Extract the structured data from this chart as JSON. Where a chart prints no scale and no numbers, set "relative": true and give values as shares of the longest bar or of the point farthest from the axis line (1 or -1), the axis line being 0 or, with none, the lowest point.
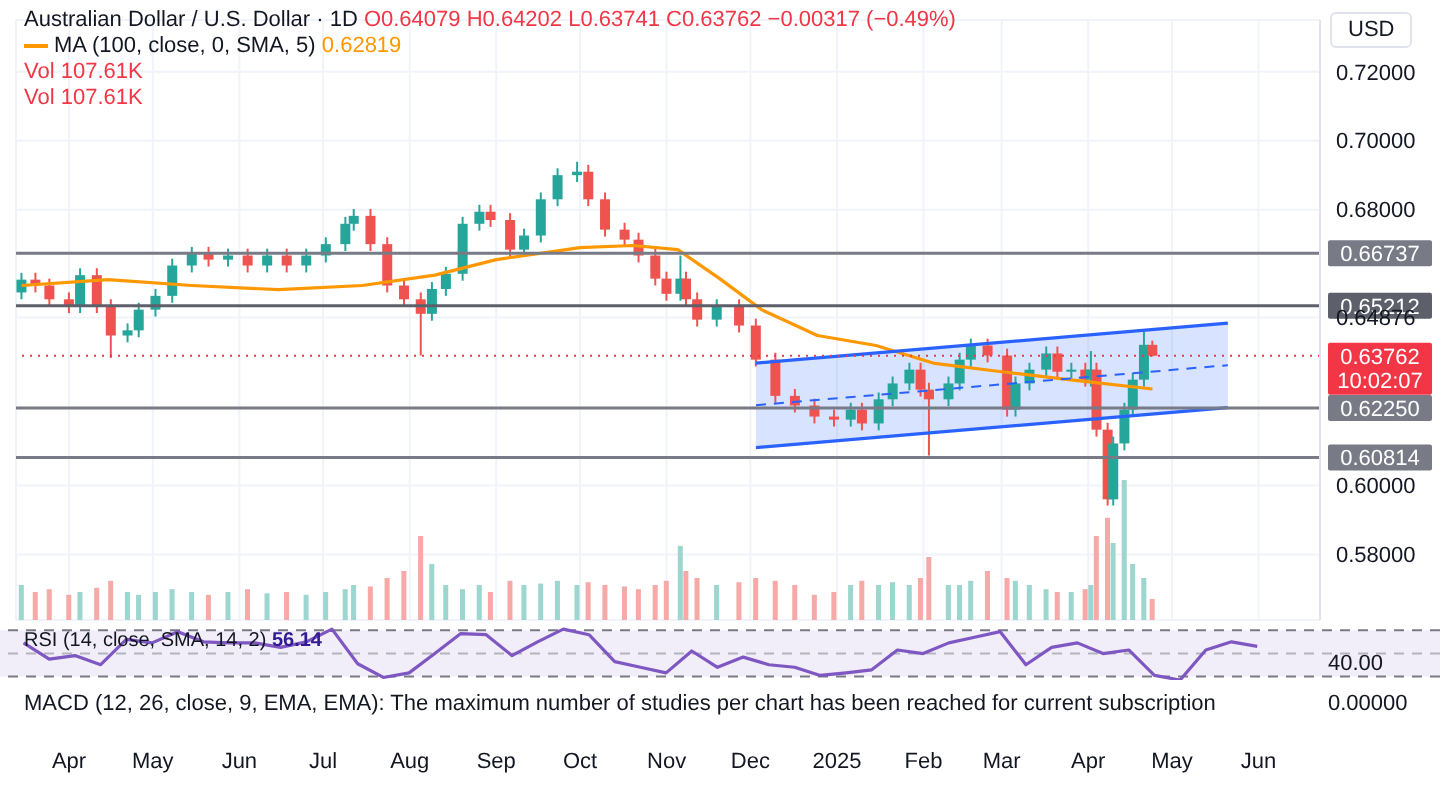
{
  "chart_data": [
    {
      "type": "candlestick",
      "title": "Australian Dollar / U.S. Dollar · 1D",
      "annotations": [
        "O0.64079 H0.64202 L0.63741 C0.63762 −0.00317 (−0.49%)",
        "0.62819",
        "USD",
        "10:02:07"
      ],
      "colors": [
        "#26a69a",
        "#ef5350",
        "#ef5350",
        "#ef5350",
        "#26a69a",
        "#ef5350",
        "#ef5350",
        "#26a69a",
        "#26a69a",
        "#26a69a",
        "#26a69a",
        "#26a69a",
        "#ef5350",
        "#26a69a",
        "#ef5350",
        "#26a69a",
        "#ef5350",
        "#26a69a",
        "#26a69a",
        "#26a69a",
        "#26a69a",
        "#ef5350",
        "#ef5350",
        "#ef5350",
        "#ef5350",
        "#26a69a",
        "#26a69a",
        "#26a69a",
        "#26a69a",
        "#ef5350",
        "#ef5350",
        "#26a69a",
        "#26a69a",
        "#26a69a",
        "#26a69a",
        "#ef5350",
        "#ef5350",
        "#ef5350",
        "#ef5350",
        "#ef5350",
        "#ef5350",
        "#26a69a",
        "#ef5350",
        "#ef5350",
        "#26a69a",
        "#ef5350",
        "#ef5350",
        "#ef5350",
        "#ef5350",
        "#ef5350",
        "#ef5350",
        "#26a69a",
        "#ef5350",
        "#26a69a",
        "#26a69a",
        "#26a69a",
        "#ef5350",
        "#ef5350",
        "#26a69a",
        "#26a69a",
        "#26a69a",
        "#ef5350",
        "#ef5350",
        "#26a69a",
        "#26a69a",
        "#26a69a",
        "#ef5350",
        "#26a69a",
        "#ef5350",
        "#26a69a",
        "#ef5350",
        "#ef5350",
        "#26a69a",
        "#26a69a",
        "#26a69a",
        "#26a69a",
        "#ef5350"
      ],
      "x": [
        "2024-03-15",
        "2024-03-20",
        "2024-03-25",
        "2024-04-01",
        "2024-04-05",
        "2024-04-11",
        "2024-04-16",
        "2024-04-22",
        "2024-04-26",
        "2024-05-02",
        "2024-05-08",
        "2024-05-15",
        "2024-05-21",
        "2024-05-28",
        "2024-06-04",
        "2024-06-11",
        "2024-06-18",
        "2024-06-25",
        "2024-07-02",
        "2024-07-09",
        "2024-07-12",
        "2024-07-18",
        "2024-07-24",
        "2024-07-30",
        "2024-08-05",
        "2024-08-09",
        "2024-08-14",
        "2024-08-20",
        "2024-08-26",
        "2024-08-30",
        "2024-09-06",
        "2024-09-11",
        "2024-09-17",
        "2024-09-23",
        "2024-09-30",
        "2024-10-04",
        "2024-10-10",
        "2024-10-17",
        "2024-10-22",
        "2024-10-28",
        "2024-11-01",
        "2024-11-06",
        "2024-11-08",
        "2024-11-12",
        "2024-11-19",
        "2024-11-27",
        "2024-12-03",
        "2024-12-10",
        "2024-12-17",
        "2024-12-24",
        "2024-12-31",
        "2025-01-06",
        "2025-01-10",
        "2025-01-16",
        "2025-01-21",
        "2025-01-27",
        "2025-01-31",
        "2025-02-03",
        "2025-02-10",
        "2025-02-14",
        "2025-02-18",
        "2025-02-24",
        "2025-03-03",
        "2025-03-06",
        "2025-03-11",
        "2025-03-17",
        "2025-03-21",
        "2025-03-26",
        "2025-03-31",
        "2025-04-02",
        "2025-04-04",
        "2025-04-08",
        "2025-04-10",
        "2025-04-14",
        "2025-04-17",
        "2025-04-21",
        "2025-04-24"
      ],
      "ohlc": [
        [
          0.656,
          0.6617,
          0.654,
          0.6597
        ],
        [
          0.6597,
          0.6617,
          0.656,
          0.658
        ],
        [
          0.658,
          0.66,
          0.652,
          0.654
        ],
        [
          0.654,
          0.656,
          0.65,
          0.652
        ],
        [
          0.652,
          0.663,
          0.65,
          0.661
        ],
        [
          0.661,
          0.663,
          0.65,
          0.652
        ],
        [
          0.652,
          0.654,
          0.637,
          0.6435
        ],
        [
          0.6435,
          0.647,
          0.6415,
          0.645
        ],
        [
          0.645,
          0.653,
          0.643,
          0.651
        ],
        [
          0.651,
          0.657,
          0.649,
          0.655
        ],
        [
          0.655,
          0.6658,
          0.653,
          0.6638
        ],
        [
          0.6638,
          0.6692,
          0.6618,
          0.6672
        ],
        [
          0.6672,
          0.6692,
          0.6635,
          0.6655
        ],
        [
          0.6655,
          0.6687,
          0.6635,
          0.6667
        ],
        [
          0.6667,
          0.6687,
          0.6618,
          0.6638
        ],
        [
          0.6638,
          0.6687,
          0.6618,
          0.6667
        ],
        [
          0.6667,
          0.6687,
          0.6618,
          0.6638
        ],
        [
          0.6638,
          0.6687,
          0.6618,
          0.6667
        ],
        [
          0.6667,
          0.672,
          0.6647,
          0.67
        ],
        [
          0.67,
          0.6779,
          0.668,
          0.6759
        ],
        [
          0.6759,
          0.6802,
          0.6739,
          0.6782
        ],
        [
          0.6782,
          0.6802,
          0.668,
          0.67
        ],
        [
          0.67,
          0.672,
          0.656,
          0.658
        ],
        [
          0.658,
          0.66,
          0.652,
          0.654
        ],
        [
          0.654,
          0.656,
          0.6377,
          0.6498
        ],
        [
          0.6498,
          0.659,
          0.6478,
          0.657
        ],
        [
          0.657,
          0.6634,
          0.655,
          0.6614
        ],
        [
          0.6614,
          0.6779,
          0.6594,
          0.6759
        ],
        [
          0.6759,
          0.6814,
          0.6739,
          0.6794
        ],
        [
          0.6794,
          0.6814,
          0.675,
          0.677
        ],
        [
          0.677,
          0.679,
          0.6664,
          0.6684
        ],
        [
          0.6684,
          0.6745,
          0.6664,
          0.6725
        ],
        [
          0.6725,
          0.685,
          0.6705,
          0.683
        ],
        [
          0.683,
          0.692,
          0.681,
          0.69
        ],
        [
          0.69,
          0.6939,
          0.688,
          0.691
        ],
        [
          0.691,
          0.693,
          0.681,
          0.683
        ],
        [
          0.683,
          0.685,
          0.6722,
          0.6742
        ],
        [
          0.6742,
          0.6762,
          0.6693,
          0.6713
        ],
        [
          0.6713,
          0.6733,
          0.6647,
          0.6667
        ],
        [
          0.6667,
          0.6687,
          0.658,
          0.66
        ],
        [
          0.66,
          0.662,
          0.6536,
          0.6556
        ],
        [
          0.6556,
          0.6667,
          0.6536,
          0.66
        ],
        [
          0.66,
          0.662,
          0.652,
          0.654
        ],
        [
          0.654,
          0.656,
          0.6461,
          0.6481
        ],
        [
          0.6481,
          0.654,
          0.6461,
          0.652
        ],
        [
          0.652,
          0.654,
          0.6444,
          0.6464
        ],
        [
          0.6464,
          0.6484,
          0.6345,
          0.6365
        ],
        [
          0.6365,
          0.6385,
          0.624,
          0.626
        ],
        [
          0.626,
          0.628,
          0.6212,
          0.6232
        ],
        [
          0.6232,
          0.6252,
          0.618,
          0.62
        ],
        [
          0.62,
          0.622,
          0.6171,
          0.6191
        ],
        [
          0.6191,
          0.624,
          0.6171,
          0.622
        ],
        [
          0.622,
          0.624,
          0.616,
          0.618
        ],
        [
          0.618,
          0.627,
          0.616,
          0.625
        ],
        [
          0.625,
          0.6316,
          0.623,
          0.6296
        ],
        [
          0.6296,
          0.6356,
          0.6276,
          0.6336
        ],
        [
          0.6336,
          0.6356,
          0.6258,
          0.6278
        ],
        [
          0.6278,
          0.6298,
          0.6087,
          0.625
        ],
        [
          0.625,
          0.6316,
          0.623,
          0.6296
        ],
        [
          0.6296,
          0.6385,
          0.6276,
          0.6365
        ],
        [
          0.6365,
          0.6426,
          0.6345,
          0.6406
        ],
        [
          0.6406,
          0.6426,
          0.6357,
          0.6377
        ],
        [
          0.6377,
          0.6397,
          0.62,
          0.622
        ],
        [
          0.622,
          0.6316,
          0.62,
          0.6296
        ],
        [
          0.6296,
          0.6356,
          0.6276,
          0.6336
        ],
        [
          0.6336,
          0.6403,
          0.6316,
          0.6383
        ],
        [
          0.6383,
          0.6403,
          0.631,
          0.633
        ],
        [
          0.633,
          0.6356,
          0.631,
          0.6336
        ],
        [
          0.6336,
          0.6356,
          0.6287,
          0.6307
        ],
        [
          0.6307,
          0.639,
          0.6287,
          0.6336
        ],
        [
          0.6336,
          0.6356,
          0.6142,
          0.6162
        ],
        [
          0.6162,
          0.6182,
          0.5942,
          0.596
        ],
        [
          0.596,
          0.6142,
          0.5942,
          0.6122
        ],
        [
          0.6122,
          0.624,
          0.6102,
          0.622
        ],
        [
          0.622,
          0.6327,
          0.62,
          0.6307
        ],
        [
          0.6307,
          0.6446,
          0.6287,
          0.6408
        ],
        [
          0.64079,
          0.64202,
          0.63741,
          0.63762
        ]
      ],
      "series": [
        {
          "type": "line",
          "name": "MA (100, close, 0, SMA, 5)",
          "color": "#ff9800",
          "x": [
            "2024-03-15",
            "2024-04-15",
            "2024-05-15",
            "2024-06-15",
            "2024-07-15",
            "2024-08-10",
            "2024-09-01",
            "2024-10-01",
            "2024-10-20",
            "2024-11-05",
            "2024-11-20",
            "2024-12-05",
            "2024-12-25",
            "2025-01-15",
            "2025-02-05",
            "2025-03-01",
            "2025-03-25",
            "2025-04-24"
          ],
          "values": [
            0.658,
            0.6597,
            0.658,
            0.6568,
            0.658,
            0.661,
            0.6655,
            0.669,
            0.6696,
            0.6684,
            0.66,
            0.651,
            0.6435,
            0.6406,
            0.6354,
            0.633,
            0.6307,
            0.628
          ]
        },
        {
          "type": "line",
          "color": "#2962ff",
          "x": [
            "2024-12-03",
            "2025-05-21"
          ],
          "values": [
            0.6355,
            0.6471
          ]
        },
        {
          "type": "line",
          "color": "#2962ff",
          "x": [
            "2024-12-03",
            "2025-05-21"
          ],
          "values": [
            0.611,
            0.6226
          ]
        },
        {
          "type": "line",
          "line_style": "dashed",
          "color": "#2962ff",
          "x": [
            "2024-12-03",
            "2025-05-21"
          ],
          "values": [
            0.6233,
            0.6349
          ],
          "lower": [
            0.611,
            0.6226
          ],
          "upper": [
            0.6355,
            0.6471
          ]
        }
      ],
      "xlim": [
        "2024-03-13",
        "2025-06-23"
      ],
      "xticks": [
        {
          "value": "2024-04-01",
          "label": "Apr"
        },
        {
          "value": "2024-05-01",
          "label": "May"
        },
        {
          "value": "2024-06-01",
          "label": "Jun"
        },
        {
          "value": "2024-07-01",
          "label": "Jul"
        },
        {
          "value": "2024-08-01",
          "label": "Aug"
        },
        {
          "value": "2024-09-01",
          "label": "Sep"
        },
        {
          "value": "2024-10-01",
          "label": "Oct"
        },
        {
          "value": "2024-11-01",
          "label": "Nov"
        },
        {
          "value": "2024-12-01",
          "label": "Dec"
        },
        {
          "value": "2025-01-01",
          "label": "2025"
        },
        {
          "value": "2025-02-01",
          "label": "Feb"
        },
        {
          "value": "2025-03-01",
          "label": "Mar"
        },
        {
          "value": "2025-04-01",
          "label": "Apr"
        },
        {
          "value": "2025-05-01",
          "label": "May"
        },
        {
          "value": "2025-06-01",
          "label": "Jun"
        }
      ],
      "ylim": [
        0.561,
        0.735
      ],
      "yticks": [
        {
          "value": 0.72,
          "label": "0.72000"
        },
        {
          "value": 0.7,
          "label": "0.70000"
        },
        {
          "value": 0.68,
          "label": "0.68000"
        },
        {
          "value": 0.64876,
          "label": "0.64876"
        },
        {
          "value": 0.6,
          "label": "0.60000"
        },
        {
          "value": 0.58,
          "label": "0.58000"
        }
      ],
      "ref_lines": [
        {
          "axis": "y",
          "value": 0.66737,
          "label": "0.66737",
          "color": "#787b86"
        },
        {
          "axis": "y",
          "value": 0.65212,
          "label": "0.65212",
          "color": "#5d606b"
        },
        {
          "axis": "y",
          "value": 0.6225,
          "label": "0.62250",
          "color": "#787b86"
        },
        {
          "axis": "y",
          "value": 0.60814,
          "label": "0.60814",
          "color": "#787b86"
        },
        {
          "axis": "y",
          "value": 0.63762,
          "label": "0.63762",
          "color": "#f23645",
          "line_style": "dotted"
        }
      ],
      "grid": true,
      "legend": "top left"
    },
    {
      "type": "bar",
      "relative": true,
      "annotations": [
        "Vol 107.61K",
        "Vol 107.61K"
      ],
      "x": [
        "2024-03-15",
        "2024-03-20",
        "2024-03-25",
        "2024-04-01",
        "2024-04-05",
        "2024-04-11",
        "2024-04-16",
        "2024-04-22",
        "2024-04-26",
        "2024-05-02",
        "2024-05-08",
        "2024-05-15",
        "2024-05-21",
        "2024-05-28",
        "2024-06-04",
        "2024-06-11",
        "2024-06-18",
        "2024-06-25",
        "2024-07-02",
        "2024-07-09",
        "2024-07-12",
        "2024-07-18",
        "2024-07-24",
        "2024-07-30",
        "2024-08-05",
        "2024-08-09",
        "2024-08-14",
        "2024-08-20",
        "2024-08-26",
        "2024-08-30",
        "2024-09-06",
        "2024-09-11",
        "2024-09-17",
        "2024-09-23",
        "2024-09-30",
        "2024-10-04",
        "2024-10-10",
        "2024-10-17",
        "2024-10-22",
        "2024-10-28",
        "2024-11-01",
        "2024-11-06",
        "2024-11-08",
        "2024-11-12",
        "2024-11-19",
        "2024-11-27",
        "2024-12-03",
        "2024-12-10",
        "2024-12-17",
        "2024-12-24",
        "2024-12-31",
        "2025-01-06",
        "2025-01-10",
        "2025-01-16",
        "2025-01-21",
        "2025-01-27",
        "2025-01-31",
        "2025-02-03",
        "2025-02-10",
        "2025-02-14",
        "2025-02-18",
        "2025-02-24",
        "2025-03-03",
        "2025-03-06",
        "2025-03-11",
        "2025-03-17",
        "2025-03-21",
        "2025-03-26",
        "2025-03-31",
        "2025-04-02",
        "2025-04-04",
        "2025-04-08",
        "2025-04-10",
        "2025-04-14",
        "2025-04-17",
        "2025-04-21",
        "2025-04-24"
      ],
      "values": [
        0.25,
        0.2,
        0.22,
        0.18,
        0.2,
        0.23,
        0.28,
        0.2,
        0.18,
        0.2,
        0.22,
        0.2,
        0.18,
        0.2,
        0.22,
        0.19,
        0.2,
        0.18,
        0.2,
        0.22,
        0.25,
        0.24,
        0.3,
        0.35,
        0.6,
        0.4,
        0.25,
        0.22,
        0.25,
        0.2,
        0.28,
        0.25,
        0.26,
        0.28,
        0.25,
        0.27,
        0.25,
        0.24,
        0.22,
        0.25,
        0.28,
        0.53,
        0.35,
        0.3,
        0.25,
        0.27,
        0.3,
        0.28,
        0.25,
        0.18,
        0.2,
        0.25,
        0.28,
        0.25,
        0.27,
        0.25,
        0.3,
        0.45,
        0.25,
        0.25,
        0.28,
        0.35,
        0.3,
        0.28,
        0.25,
        0.22,
        0.2,
        0.2,
        0.22,
        0.25,
        0.6,
        0.73,
        0.55,
        1,
        0.4,
        0.3,
        0.15
      ],
      "colors": [
        "#9cd6cf",
        "#f6a9a6",
        "#f6a9a6",
        "#f6a9a6",
        "#9cd6cf",
        "#f6a9a6",
        "#f6a9a6",
        "#9cd6cf",
        "#9cd6cf",
        "#9cd6cf",
        "#9cd6cf",
        "#9cd6cf",
        "#f6a9a6",
        "#9cd6cf",
        "#f6a9a6",
        "#9cd6cf",
        "#f6a9a6",
        "#9cd6cf",
        "#9cd6cf",
        "#9cd6cf",
        "#9cd6cf",
        "#f6a9a6",
        "#f6a9a6",
        "#f6a9a6",
        "#f6a9a6",
        "#9cd6cf",
        "#9cd6cf",
        "#9cd6cf",
        "#9cd6cf",
        "#f6a9a6",
        "#f6a9a6",
        "#9cd6cf",
        "#9cd6cf",
        "#9cd6cf",
        "#9cd6cf",
        "#f6a9a6",
        "#f6a9a6",
        "#f6a9a6",
        "#f6a9a6",
        "#f6a9a6",
        "#f6a9a6",
        "#9cd6cf",
        "#f6a9a6",
        "#f6a9a6",
        "#9cd6cf",
        "#f6a9a6",
        "#f6a9a6",
        "#f6a9a6",
        "#f6a9a6",
        "#f6a9a6",
        "#f6a9a6",
        "#9cd6cf",
        "#f6a9a6",
        "#9cd6cf",
        "#9cd6cf",
        "#9cd6cf",
        "#f6a9a6",
        "#f6a9a6",
        "#9cd6cf",
        "#9cd6cf",
        "#9cd6cf",
        "#f6a9a6",
        "#f6a9a6",
        "#9cd6cf",
        "#9cd6cf",
        "#9cd6cf",
        "#f6a9a6",
        "#9cd6cf",
        "#f6a9a6",
        "#9cd6cf",
        "#f6a9a6",
        "#f6a9a6",
        "#9cd6cf",
        "#9cd6cf",
        "#9cd6cf",
        "#9cd6cf",
        "#f6a9a6"
      ],
      "xlim": [
        "2024-03-13",
        "2025-06-23"
      ]
    },
    {
      "type": "line",
      "relative": true,
      "tick_labels": false,
      "title": "RSI (14, close, SMA, 14, 2)",
      "annotations": [
        "56.14",
        "40.00"
      ],
      "categories": [
        null,
        null,
        null,
        null,
        null,
        null,
        null,
        null,
        null,
        null,
        null,
        null,
        null,
        null,
        null,
        null,
        null,
        null,
        null,
        null,
        null,
        null,
        null,
        null,
        null,
        null,
        null,
        null,
        null,
        null,
        null,
        null,
        null,
        null,
        null,
        null,
        null,
        null,
        null,
        null,
        null,
        null,
        null,
        null,
        null,
        null,
        null,
        null,
        null
      ],
      "series": [
        {
          "color": "#7e57c2",
          "values": [
            0.73,
            0.41,
            0.48,
            0.3,
            0.8,
            0.73,
            0.95,
            0.75,
            0.73,
            0.73,
            0.64,
            0.75,
            1,
            0.32,
            0.05,
            0.14,
            0.52,
            0.91,
            0.89,
            0.48,
            0.75,
            1,
            0.89,
            0.36,
            0.25,
            0.14,
            0.57,
            0.25,
            0.45,
            0.3,
            0.25,
            0.09,
            0.14,
            0.2,
            0.59,
            0.52,
            0.73,
            0.84,
            0.95,
            0.3,
            0.64,
            0.73,
            0.52,
            0.59,
            0.09,
            0,
            0.59,
            0.75,
            0.66
          ]
        }
      ],
      "ref_lines": [
        {
          "axis": "y",
          "value": 0.98,
          "color": "#787b86",
          "line_style": "dashed"
        },
        {
          "axis": "y",
          "value": 0.52,
          "color": "#b2b5be",
          "line_style": "dashed"
        },
        {
          "axis": "y",
          "value": 0.07,
          "color": "#787b86",
          "line_style": "dashed"
        }
      ],
      "bands": [
        {
          "axis": "y",
          "from": 0.07,
          "to": 0.98,
          "color": "#7e57c2"
        }
      ]
    },
    {
      "type": "other",
      "title": "MACD (12, 26, close, 9, EMA, EMA): The maximum number of studies per chart has been reached for current subscription",
      "annotations": [
        "0.00000"
      ]
    }
  ]
}
